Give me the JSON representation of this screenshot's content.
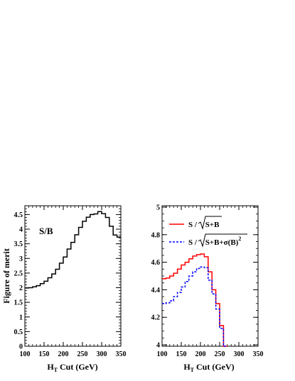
{
  "chart_data": [
    {
      "type": "line",
      "step": true,
      "panel_label": "S/B",
      "ylabel": "Figure of merit",
      "xlabel": "H",
      "xlabel_sub": "T",
      "xlabel_rest": " Cut (GeV)",
      "xlim": [
        100,
        350
      ],
      "ylim": [
        0,
        4.8
      ],
      "xticks": [
        "100",
        "150",
        "200",
        "250",
        "300",
        "350"
      ],
      "yticks": [
        "0",
        "0.5",
        "1",
        "1.5",
        "2",
        "2.5",
        "3",
        "3.5",
        "4",
        "4.5"
      ],
      "bin_width": 10,
      "series": [
        {
          "color": "#000000",
          "dash": "none",
          "x": [
            100,
            110,
            120,
            130,
            140,
            150,
            160,
            170,
            180,
            190,
            200,
            210,
            220,
            230,
            240,
            250,
            260,
            270,
            280,
            290,
            300,
            310,
            320,
            330,
            340
          ],
          "values": [
            1.99,
            2.0,
            2.03,
            2.07,
            2.14,
            2.22,
            2.34,
            2.47,
            2.63,
            2.84,
            3.05,
            3.32,
            3.55,
            3.81,
            4.06,
            4.27,
            4.41,
            4.5,
            4.52,
            4.6,
            4.53,
            4.4,
            4.1,
            3.8,
            3.73
          ]
        }
      ]
    },
    {
      "type": "line",
      "step": true,
      "xlabel": "H",
      "xlabel_sub": "T",
      "xlabel_rest": " Cut (GeV)",
      "xlim": [
        100,
        350
      ],
      "ylim": [
        3.99,
        5.01
      ],
      "xticks": [
        "100",
        "150",
        "200",
        "250",
        "300",
        "350"
      ],
      "yticks": [
        "4",
        "4.2",
        "4.4",
        "4.6",
        "4.8",
        "5"
      ],
      "legend_position": "top-left",
      "bin_width": 10,
      "series": [
        {
          "name_pre": "S / ",
          "name_root": "S+B",
          "name_post": "",
          "color": "#ff0000",
          "dash": "none",
          "x": [
            100,
            110,
            120,
            130,
            140,
            150,
            160,
            170,
            180,
            190,
            200,
            210,
            220,
            230,
            240,
            250,
            260
          ],
          "values": [
            4.48,
            4.485,
            4.5,
            4.52,
            4.55,
            4.58,
            4.6,
            4.625,
            4.645,
            4.655,
            4.66,
            4.64,
            4.53,
            4.4,
            4.3,
            4.14,
            3.99
          ]
        },
        {
          "name_pre": "S / ",
          "name_root": "S+B+σ(B)",
          "name_post": "2",
          "color": "#0000ff",
          "dash": "3,2",
          "x": [
            100,
            110,
            120,
            130,
            140,
            150,
            160,
            170,
            180,
            190,
            200,
            210,
            220,
            230,
            240,
            250,
            260
          ],
          "values": [
            4.3,
            4.305,
            4.32,
            4.35,
            4.38,
            4.42,
            4.46,
            4.5,
            4.53,
            4.555,
            4.565,
            4.56,
            4.47,
            4.37,
            4.26,
            4.12,
            3.99
          ]
        }
      ]
    }
  ]
}
